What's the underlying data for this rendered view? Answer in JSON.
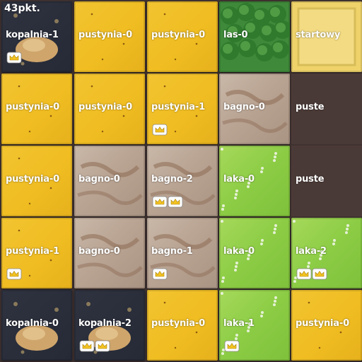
{
  "score": "43pkt.",
  "rows": [
    [
      {
        "label": "kopalnia-1",
        "terrain": "kopalnia",
        "crowns": 1
      },
      {
        "label": "pustynia-0",
        "terrain": "pustynia",
        "crowns": 0
      },
      {
        "label": "pustynia-0",
        "terrain": "pustynia",
        "crowns": 0
      },
      {
        "label": "las-0",
        "terrain": "las",
        "crowns": 0
      },
      {
        "label": "startowy",
        "terrain": "startowy",
        "crowns": 0
      }
    ],
    [
      {
        "label": "pustynia-0",
        "terrain": "pustynia",
        "crowns": 0
      },
      {
        "label": "pustynia-0",
        "terrain": "pustynia",
        "crowns": 0
      },
      {
        "label": "pustynia-1",
        "terrain": "pustynia",
        "crowns": 1
      },
      {
        "label": "bagno-0",
        "terrain": "bagno",
        "crowns": 0
      },
      {
        "label": "puste",
        "terrain": "puste",
        "crowns": 0
      }
    ],
    [
      {
        "label": "pustynia-0",
        "terrain": "pustynia",
        "crowns": 0
      },
      {
        "label": "bagno-0",
        "terrain": "bagno",
        "crowns": 0
      },
      {
        "label": "bagno-2",
        "terrain": "bagno",
        "crowns": 2
      },
      {
        "label": "laka-0",
        "terrain": "laka",
        "crowns": 0
      },
      {
        "label": "puste",
        "terrain": "puste",
        "crowns": 0
      }
    ],
    [
      {
        "label": "pustynia-1",
        "terrain": "pustynia",
        "crowns": 1
      },
      {
        "label": "bagno-0",
        "terrain": "bagno",
        "crowns": 0
      },
      {
        "label": "bagno-1",
        "terrain": "bagno",
        "crowns": 1
      },
      {
        "label": "laka-0",
        "terrain": "laka",
        "crowns": 0
      },
      {
        "label": "laka-2",
        "terrain": "laka",
        "crowns": 2
      }
    ],
    [
      {
        "label": "kopalnia-0",
        "terrain": "kopalnia",
        "crowns": 0
      },
      {
        "label": "kopalnia-2",
        "terrain": "kopalnia",
        "crowns": 2
      },
      {
        "label": "pustynia-0",
        "terrain": "pustynia",
        "crowns": 0
      },
      {
        "label": "laka-1",
        "terrain": "laka",
        "crowns": 1
      },
      {
        "label": "pustynia-0",
        "terrain": "pustynia",
        "crowns": 0
      }
    ]
  ],
  "colors": {
    "pustynia": "#f0bd22",
    "bagno": "#b8a291",
    "laka": "#8ccc45",
    "las": "#3f8a3a",
    "kopalnia": "#262a36",
    "startowy": "#efd36a",
    "puste": "#4a3a37"
  }
}
